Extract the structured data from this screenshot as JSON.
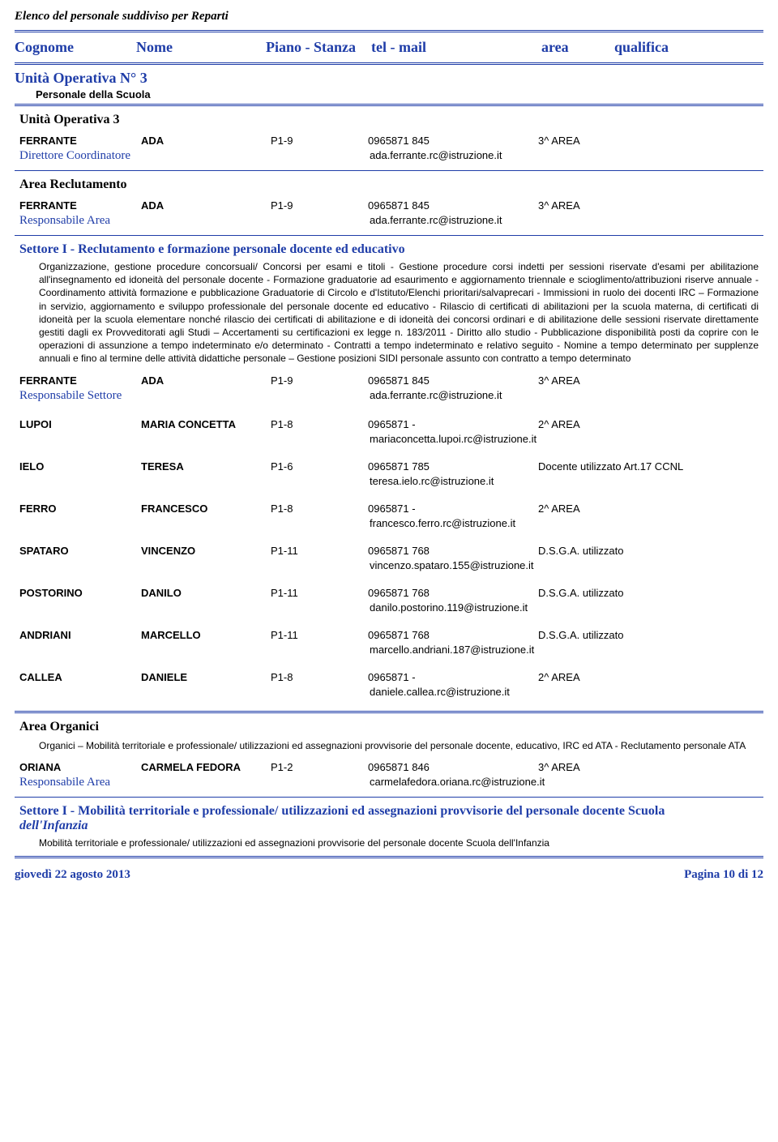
{
  "report_title": "Elenco del personale suddiviso per Reparti",
  "columns": {
    "cognome": "Cognome",
    "nome": "Nome",
    "piano": "Piano - Stanza",
    "tel": "tel - mail",
    "area": "area",
    "qualifica": "qualifica"
  },
  "unit": {
    "title": "Unità Operativa N° 3",
    "sub": "Personale della Scuola",
    "section_header": "Unità Operativa 3"
  },
  "director": {
    "cognome": "FERRANTE",
    "nome": "ADA",
    "ps": "P1-9",
    "tel": "0965871 845",
    "qual": "3^ AREA",
    "role": "Direttore Coordinatore",
    "mail": "ada.ferrante.rc@istruzione.it"
  },
  "area_recl": {
    "title": "Area Reclutamento",
    "head": {
      "cognome": "FERRANTE",
      "nome": "ADA",
      "ps": "P1-9",
      "tel": "0965871 845",
      "qual": "3^ AREA",
      "role": "Responsabile Area",
      "mail": "ada.ferrante.rc@istruzione.it"
    },
    "settore_title": "Settore I - Reclutamento e formazione personale docente ed educativo",
    "settore_descr": "Organizzazione, gestione procedure concorsuali/ Concorsi per esami e titoli - Gestione procedure corsi indetti per sessioni riservate d'esami per abilitazione all'insegnamento ed idoneità del personale docente - Formazione graduatorie ad esaurimento e aggiornamento triennale e scioglimento/attribuzioni riserve annuale -  Coordinamento attività formazione  e pubblicazione Graduatorie di Circolo e d'Istituto/Elenchi prioritari/salvaprecari - Immissioni in ruolo dei docenti IRC – Formazione in servizio, aggiornamento e sviluppo professionale del personale docente ed educativo - Rilascio di certificati di abilitazioni per la scuola materna, di certificati di idoneità per la scuola elementare nonché rilascio dei certificati di abilitazione e di idoneità dei concorsi ordinari e di abilitazione delle sessioni riservate direttamente gestiti dagli ex Provveditorati agli Studi – Accertamenti su certificazioni ex legge n. 183/2011 - Diritto allo studio - Pubblicazione disponibilità  posti da coprire con le operazioni di assunzione a tempo indeterminato e/o  determinato - Contratti a tempo indeterminato e relativo seguito  - Nomine a tempo determinato per supplenze annuali e fino al termine delle attività didattiche personale – Gestione posizioni SIDI personale assunto con contratto a tempo determinato",
    "settore_head": {
      "cognome": "FERRANTE",
      "nome": "ADA",
      "ps": "P1-9",
      "tel": "0965871 845",
      "qual": "3^ AREA",
      "role": "Responsabile Settore",
      "mail": "ada.ferrante.rc@istruzione.it"
    },
    "staff": [
      {
        "cognome": "LUPOI",
        "nome": "MARIA CONCETTA",
        "ps": "P1-8",
        "tel": "0965871    -",
        "qual": "2^ AREA",
        "mail": "mariaconcetta.lupoi.rc@istruzione.it"
      },
      {
        "cognome": "IELO",
        "nome": "TERESA",
        "ps": "P1-6",
        "tel": "0965871 785",
        "qual": "Docente utilizzato Art.17 CCNL",
        "mail": "teresa.ielo.rc@istruzione.it"
      },
      {
        "cognome": "FERRO",
        "nome": "FRANCESCO",
        "ps": "P1-8",
        "tel": "0965871    -",
        "qual": "2^ AREA",
        "mail": "francesco.ferro.rc@istruzione.it"
      },
      {
        "cognome": "SPATARO",
        "nome": "VINCENZO",
        "ps": "P1-11",
        "tel": "0965871 768",
        "qual": "D.S.G.A. utilizzato",
        "mail": "vincenzo.spataro.155@istruzione.it"
      },
      {
        "cognome": "POSTORINO",
        "nome": "DANILO",
        "ps": "P1-11",
        "tel": "0965871 768",
        "qual": "D.S.G.A. utilizzato",
        "mail": "danilo.postorino.119@istruzione.it"
      },
      {
        "cognome": "ANDRIANI",
        "nome": "MARCELLO",
        "ps": "P1-11",
        "tel": "0965871 768",
        "qual": "D.S.G.A. utilizzato",
        "mail": "marcello.andriani.187@istruzione.it"
      },
      {
        "cognome": "CALLEA",
        "nome": "DANIELE",
        "ps": "P1-8",
        "tel": "0965871    -",
        "qual": "2^ AREA",
        "mail": "daniele.callea.rc@istruzione.it"
      }
    ]
  },
  "area_org": {
    "title": "Area Organici",
    "descr": "Organici  – Mobilità territoriale e professionale/ utilizzazioni ed assegnazioni provvisorie del personale docente, educativo, IRC ed ATA  - Reclutamento personale ATA",
    "head": {
      "cognome": "ORIANA",
      "nome": "CARMELA FEDORA",
      "ps": "P1-2",
      "tel": "0965871 846",
      "qual": "3^ AREA",
      "role": "Responsabile Area",
      "mail": "carmelafedora.oriana.rc@istruzione.it"
    },
    "settore_title_a": "Settore I - Mobilità territoriale e professionale/ utilizzazioni ed assegnazioni provvisorie  del personale docente Scuola",
    "settore_title_b": "dell'Infanzia",
    "settore_descr": "Mobilità territoriale e professionale/ utilizzazioni ed assegnazioni provvisorie  del personale docente Scuola dell'Infanzia"
  },
  "footer": {
    "date": "giovedì 22 agosto 2013",
    "page": "Pagina 10 di 12"
  }
}
